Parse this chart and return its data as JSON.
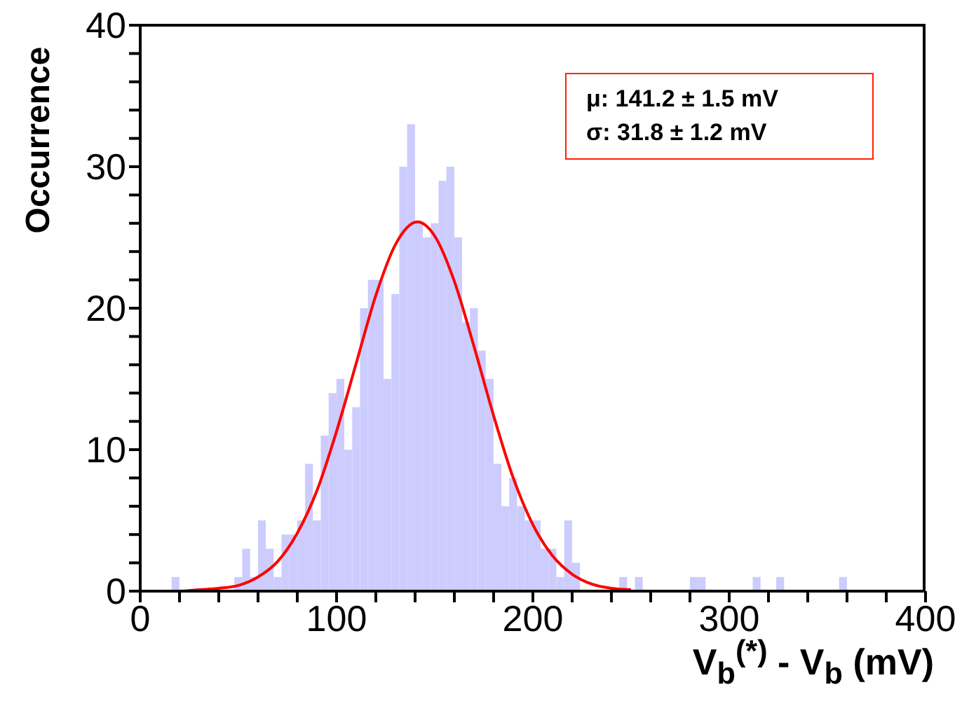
{
  "chart_data": {
    "type": "histogram",
    "xlabel": "V$_{b}$$^{(*)}$ - V$_{b}$ (mV)",
    "ylabel": "Occurrence",
    "annotations": [
      "μ: 141.2 ± 1.5 mV",
      "σ: 31.8 ± 1.2 mV"
    ],
    "bins": [
      0,
      4,
      8,
      12,
      16,
      20,
      24,
      28,
      32,
      36,
      40,
      44,
      48,
      52,
      56,
      60,
      64,
      68,
      72,
      76,
      80,
      84,
      88,
      92,
      96,
      100,
      104,
      108,
      112,
      116,
      120,
      124,
      128,
      132,
      136,
      140,
      144,
      148,
      152,
      156,
      160,
      164,
      168,
      172,
      176,
      180,
      184,
      188,
      192,
      196,
      200,
      204,
      208,
      212,
      216,
      220,
      224,
      228,
      232,
      236,
      240,
      244,
      248,
      252,
      256,
      260,
      264,
      268,
      272,
      276,
      280,
      284,
      288,
      292,
      296,
      300,
      304,
      308,
      312,
      316,
      320,
      324,
      328,
      332,
      336,
      340,
      344,
      348,
      352,
      356,
      360,
      364,
      368,
      372,
      376,
      380,
      384,
      388,
      392,
      396,
      400
    ],
    "series": [
      {
        "color": "#ccccff",
        "values": [
          0,
          0,
          0,
          0,
          1,
          0,
          0,
          0,
          0,
          0,
          0,
          0,
          1,
          3,
          1,
          5,
          3,
          1,
          4,
          4,
          5,
          9,
          5,
          11,
          14,
          15,
          10,
          13,
          20,
          22,
          22,
          15,
          21,
          30,
          33,
          26,
          25,
          26,
          29,
          30,
          25,
          19,
          20,
          17,
          15,
          9,
          6,
          8,
          6,
          5,
          5,
          3,
          3,
          1,
          5,
          2,
          0,
          0,
          0,
          0,
          0,
          1,
          0,
          1,
          0,
          0,
          0,
          0,
          0,
          0,
          1,
          1,
          0,
          0,
          0,
          0,
          0,
          0,
          1,
          0,
          0,
          1,
          0,
          0,
          0,
          0,
          0,
          0,
          0,
          1,
          0,
          0,
          0,
          0,
          0,
          0,
          0,
          0,
          0,
          0
        ]
      },
      {
        "type": "line",
        "color": "#ff0000",
        "x": [
          10,
          20,
          30,
          40,
          50,
          60,
          70,
          80,
          90,
          100,
          110,
          120,
          130,
          141.2,
          150,
          160,
          170,
          180,
          190,
          200,
          210,
          220,
          230,
          240,
          250
        ],
        "values": [
          0,
          0,
          0.1,
          0.2,
          0.4,
          1,
          2.1,
          4.1,
          7.1,
          11.3,
          16.1,
          20.9,
          24.5,
          26.1,
          25.1,
          21.9,
          17.3,
          12.4,
          8,
          4.7,
          2.5,
          1.2,
          0.5,
          0.2,
          0.1
        ]
      }
    ],
    "xlim": [
      0,
      400
    ],
    "xticks": [
      0,
      {
        "value": 20,
        "label": null
      },
      {
        "value": 40,
        "label": null
      },
      {
        "value": 60,
        "label": null
      },
      {
        "value": 80,
        "label": null
      },
      100,
      {
        "value": 120,
        "label": null
      },
      {
        "value": 140,
        "label": null
      },
      {
        "value": 160,
        "label": null
      },
      {
        "value": 180,
        "label": null
      },
      200,
      {
        "value": 220,
        "label": null
      },
      {
        "value": 240,
        "label": null
      },
      {
        "value": 260,
        "label": null
      },
      {
        "value": 280,
        "label": null
      },
      300,
      {
        "value": 320,
        "label": null
      },
      {
        "value": 340,
        "label": null
      },
      {
        "value": 360,
        "label": null
      },
      {
        "value": 380,
        "label": null
      },
      400
    ],
    "ylim": [
      0,
      40
    ],
    "yticks": [
      0,
      {
        "value": 2,
        "label": null
      },
      {
        "value": 4,
        "label": null
      },
      {
        "value": 6,
        "label": null
      },
      {
        "value": 8,
        "label": null
      },
      10,
      {
        "value": 12,
        "label": null
      },
      {
        "value": 14,
        "label": null
      },
      {
        "value": 16,
        "label": null
      },
      {
        "value": 18,
        "label": null
      },
      20,
      {
        "value": 22,
        "label": null
      },
      {
        "value": 24,
        "label": null
      },
      {
        "value": 26,
        "label": null
      },
      {
        "value": 28,
        "label": null
      },
      30,
      {
        "value": 32,
        "label": null
      },
      {
        "value": 34,
        "label": null
      },
      {
        "value": 36,
        "label": null
      },
      {
        "value": 38,
        "label": null
      },
      40
    ],
    "grid": false,
    "legend": false
  }
}
